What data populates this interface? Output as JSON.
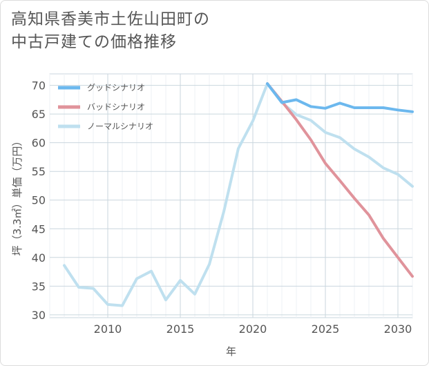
{
  "title_lines": [
    "高知県香美市土佐山田町の",
    "中古戸建ての価格推移"
  ],
  "chart_data": {
    "type": "line",
    "title": "高知県香美市土佐山田町の中古戸建ての価格推移",
    "xlabel": "年",
    "ylabel": "坪（3.3㎡）単価（万円）",
    "xlim": [
      2006,
      2031
    ],
    "ylim": [
      29.5,
      72
    ],
    "xticks": [
      2010,
      2015,
      2020,
      2025,
      2030
    ],
    "yticks": [
      30,
      35,
      40,
      45,
      50,
      55,
      60,
      65,
      70
    ],
    "grid": true,
    "legend_position": "top-left",
    "series": [
      {
        "name": "グッドシナリオ",
        "color": "#6cb8ee",
        "x": [
          2021,
          2022,
          2023,
          2024,
          2025,
          2026,
          2027,
          2028,
          2029,
          2030,
          2031
        ],
        "values": [
          70.3,
          67.0,
          67.5,
          66.3,
          66.0,
          66.9,
          66.1,
          66.1,
          66.1,
          65.7,
          65.4
        ]
      },
      {
        "name": "バッドシナリオ",
        "color": "#e0939b",
        "x": [
          2021,
          2022,
          2023,
          2024,
          2025,
          2026,
          2027,
          2028,
          2029,
          2030,
          2031
        ],
        "values": [
          70.3,
          67.2,
          64.0,
          60.5,
          56.4,
          53.4,
          50.3,
          47.4,
          43.3,
          40.0,
          36.7
        ]
      },
      {
        "name": "ノーマルシナリオ",
        "color": "#bfe0ef",
        "x": [
          2007,
          2008,
          2009,
          2010,
          2011,
          2012,
          2013,
          2014,
          2015,
          2016,
          2017,
          2018,
          2019,
          2020,
          2021,
          2022,
          2023,
          2024,
          2025,
          2026,
          2027,
          2028,
          2029,
          2030,
          2031
        ],
        "values": [
          38.6,
          34.8,
          34.6,
          31.8,
          31.6,
          36.3,
          37.6,
          32.6,
          36.0,
          33.6,
          38.8,
          48.0,
          59.0,
          63.8,
          70.3,
          67.0,
          64.9,
          63.9,
          61.8,
          60.9,
          58.9,
          57.5,
          55.6,
          54.5,
          52.4
        ]
      }
    ]
  }
}
